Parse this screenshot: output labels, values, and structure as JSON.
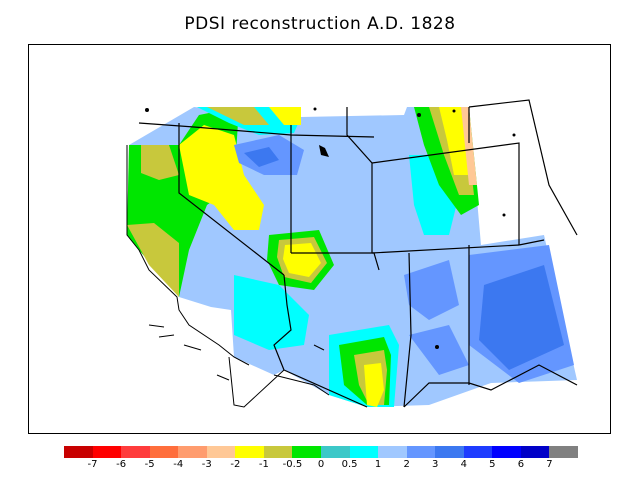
{
  "title": "PDSI reconstruction A.D. 1828",
  "legend": {
    "colors": [
      "#c80000",
      "#ff0000",
      "#ff3c3c",
      "#ff6e3c",
      "#ff9c6e",
      "#ffc896",
      "#ffff00",
      "#c8c83c",
      "#00e600",
      "#3cc8c8",
      "#00ffff",
      "#a0c8ff",
      "#6496ff",
      "#3c78f0",
      "#1e3cff",
      "#0000ff",
      "#0000c8",
      "#808080"
    ],
    "labels": [
      "-7",
      "-6",
      "-5",
      "-4",
      "-3",
      "-2",
      "-1",
      "-0.5",
      "0",
      "0.5",
      "1",
      "2",
      "3",
      "4",
      "5",
      "6",
      "7"
    ]
  }
}
